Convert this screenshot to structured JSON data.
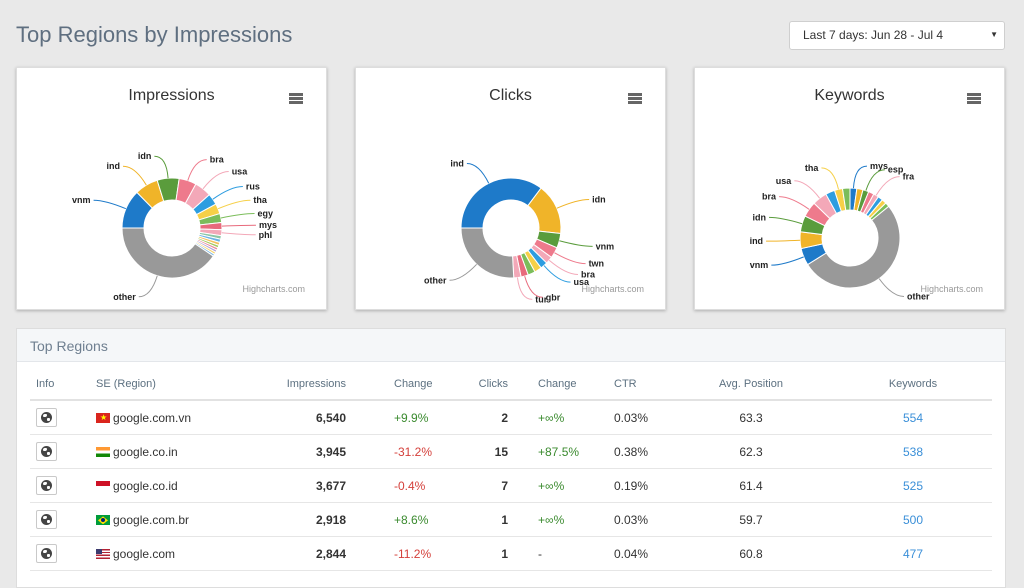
{
  "page": {
    "title": "Top Regions by Impressions",
    "date_range": "Last 7 days: Jun 28 - Jul 4"
  },
  "charts": [
    {
      "title": "Impressions",
      "credit": "Highcharts.com",
      "chart_data": {
        "type": "pie",
        "title": "Impressions",
        "donut": true,
        "slices": [
          {
            "label": "vnm",
            "value": 6540,
            "color": "#1e7ac9"
          },
          {
            "label": "ind",
            "value": 3945,
            "color": "#f0b429"
          },
          {
            "label": "idn",
            "value": 3677,
            "color": "#5a9c3c"
          },
          {
            "label": "bra",
            "value": 2918,
            "color": "#ee7a8c"
          },
          {
            "label": "usa",
            "value": 2844,
            "color": "#f3a8b8"
          },
          {
            "label": "rus",
            "value": 1900,
            "color": "#2d9de0"
          },
          {
            "label": "tha",
            "value": 1700,
            "color": "#f6d048"
          },
          {
            "label": "egy",
            "value": 1500,
            "color": "#7bbd5a"
          },
          {
            "label": "mys",
            "value": 1200,
            "color": "#e86a7c"
          },
          {
            "label": "phl",
            "value": 1000,
            "color": "#f3a8b8"
          },
          {
            "label": "",
            "value": 600,
            "color": "#8cc6a6"
          },
          {
            "label": "",
            "value": 550,
            "color": "#6cb2e4"
          },
          {
            "label": "",
            "value": 500,
            "color": "#f4c15e"
          },
          {
            "label": "",
            "value": 450,
            "color": "#a3c95e"
          },
          {
            "label": "",
            "value": 420,
            "color": "#e88a9a"
          },
          {
            "label": "",
            "value": 400,
            "color": "#b0a0d8"
          },
          {
            "label": "",
            "value": 380,
            "color": "#f7d26a"
          },
          {
            "label": "",
            "value": 360,
            "color": "#80b8e0"
          },
          {
            "label": "other",
            "value": 21000,
            "color": "#999999"
          }
        ]
      }
    },
    {
      "title": "Clicks",
      "credit": "Highcharts.com",
      "chart_data": {
        "type": "pie",
        "title": "Clicks",
        "donut": true,
        "slices": [
          {
            "label": "ind",
            "value": 15,
            "color": "#1e7ac9"
          },
          {
            "label": "idn",
            "value": 7,
            "color": "#f0b429"
          },
          {
            "label": "vnm",
            "value": 2,
            "color": "#5a9c3c"
          },
          {
            "label": "twn",
            "value": 1.5,
            "color": "#ee7a8c"
          },
          {
            "label": "bra",
            "value": 1,
            "color": "#f3a8b8"
          },
          {
            "label": "usa",
            "value": 1,
            "color": "#2d9de0"
          },
          {
            "label": "",
            "value": 1,
            "color": "#f6d048"
          },
          {
            "label": "",
            "value": 1,
            "color": "#7bbd5a"
          },
          {
            "label": "gbr",
            "value": 1,
            "color": "#e86a7c"
          },
          {
            "label": "tur",
            "value": 1,
            "color": "#f3a8b8"
          },
          {
            "label": "other",
            "value": 11,
            "color": "#999999"
          }
        ]
      }
    },
    {
      "title": "Keywords",
      "credit": "Highcharts.com",
      "chart_data": {
        "type": "pie",
        "title": "Keywords",
        "donut": true,
        "slices": [
          {
            "label": "mys",
            "value": 220,
            "color": "#1e7ac9"
          },
          {
            "label": "",
            "value": 200,
            "color": "#f0b429"
          },
          {
            "label": "esp",
            "value": 190,
            "color": "#5a9c3c"
          },
          {
            "label": "",
            "value": 180,
            "color": "#ee7a8c"
          },
          {
            "label": "fra",
            "value": 170,
            "color": "#f3a8b8"
          },
          {
            "label": "",
            "value": 160,
            "color": "#2d9de0"
          },
          {
            "label": "",
            "value": 150,
            "color": "#f6d048"
          },
          {
            "label": "",
            "value": 140,
            "color": "#7bbd5a"
          },
          {
            "label": "other",
            "value": 5200,
            "color": "#999999"
          },
          {
            "label": "vnm",
            "value": 554,
            "color": "#1e7ac9"
          },
          {
            "label": "ind",
            "value": 538,
            "color": "#f0b429"
          },
          {
            "label": "idn",
            "value": 525,
            "color": "#5a9c3c"
          },
          {
            "label": "bra",
            "value": 500,
            "color": "#ee7a8c"
          },
          {
            "label": "usa",
            "value": 477,
            "color": "#f3a8b8"
          },
          {
            "label": "",
            "value": 300,
            "color": "#2d9de0"
          },
          {
            "label": "tha",
            "value": 260,
            "color": "#f6d048"
          },
          {
            "label": "",
            "value": 240,
            "color": "#7bbd5a"
          }
        ]
      }
    }
  ],
  "table": {
    "title": "Top Regions",
    "headers": [
      "Info",
      "SE (Region)",
      "Impressions",
      "Change",
      "Clicks",
      "Change",
      "CTR",
      "Avg. Position",
      "Keywords"
    ],
    "rows": [
      {
        "flag": "vn",
        "region": "google.com.vn",
        "impressions": "6,540",
        "imp_change": "+9.9%",
        "imp_dir": "pos",
        "clicks": "2",
        "clk_change": "+∞%",
        "clk_dir": "pos",
        "ctr": "0.03%",
        "avg_position": "63.3",
        "keywords": "554"
      },
      {
        "flag": "in",
        "region": "google.co.in",
        "impressions": "3,945",
        "imp_change": "-31.2%",
        "imp_dir": "neg",
        "clicks": "15",
        "clk_change": "+87.5%",
        "clk_dir": "pos",
        "ctr": "0.38%",
        "avg_position": "62.3",
        "keywords": "538"
      },
      {
        "flag": "id",
        "region": "google.co.id",
        "impressions": "3,677",
        "imp_change": "-0.4%",
        "imp_dir": "neg",
        "clicks": "7",
        "clk_change": "+∞%",
        "clk_dir": "pos",
        "ctr": "0.19%",
        "avg_position": "61.4",
        "keywords": "525"
      },
      {
        "flag": "br",
        "region": "google.com.br",
        "impressions": "2,918",
        "imp_change": "+8.6%",
        "imp_dir": "pos",
        "clicks": "1",
        "clk_change": "+∞%",
        "clk_dir": "pos",
        "ctr": "0.03%",
        "avg_position": "59.7",
        "keywords": "500"
      },
      {
        "flag": "us",
        "region": "google.com",
        "impressions": "2,844",
        "imp_change": "-11.2%",
        "imp_dir": "neg",
        "clicks": "1",
        "clk_change": "-",
        "clk_dir": "none",
        "ctr": "0.04%",
        "avg_position": "60.8",
        "keywords": "477"
      }
    ]
  }
}
